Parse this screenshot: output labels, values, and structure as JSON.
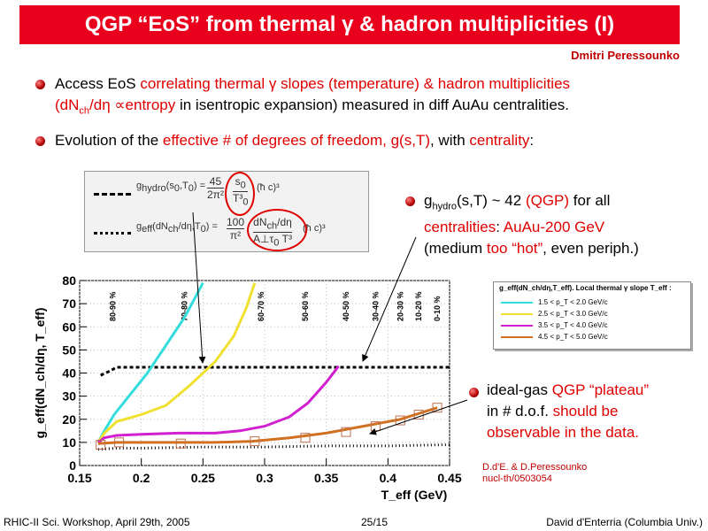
{
  "title": "QGP “EoS” from thermal γ & hadron multiplicities (I)",
  "author": "Dmitri Peressounko",
  "bullet1": {
    "line1_a": "Access EoS ",
    "line1_b": "correlating thermal γ slopes (temperature) & hadron multiplicities",
    "line2_a": "(dN",
    "line2_sub": "ch",
    "line2_b": "/dη ∝entropy",
    "line2_c": " in isentropic expansion) measured in diff AuAu centralities."
  },
  "bullet2": {
    "a": "Evolution of the ",
    "b": "effective # of degrees of freedom, g(s,T)",
    "c": ", with ",
    "d": "centrality",
    "e": ":"
  },
  "formula": {
    "f1_left": "g",
    "f1_sub": "hydro",
    "f1_args": "(s",
    "f1_args2": ",T",
    "f1_args3": ") = ",
    "f1_num": "45",
    "f1_den": "2π²",
    "f1_s": "s",
    "f1_T": "T³",
    "f1_tail": "(ħ c)³",
    "f2_left": "g",
    "f2_sub": "eff",
    "f2_args": "(dN",
    "f2_args2": "/dη,T",
    "f2_args3": ") = ",
    "f2_num": "100",
    "f2_den": "π²",
    "f2_fnum": "dN",
    "f2_fden": "A⊥τ",
    "f2_fden2": " T³",
    "f2_tail": "(ħ c)³",
    "sub0": "0",
    "subch": "ch"
  },
  "annot_hydro": {
    "a": "g",
    "sub": "hydro",
    "b": "(s,T) ~ 42 ",
    "c": "(QGP)",
    "d": " for all",
    "e": "centralities",
    "f": ": ",
    "g": "AuAu-200 GeV",
    "h": "(medium ",
    "i": "too “hot”",
    "j": ", even periph.)"
  },
  "annot_gas": {
    "a": "ideal-gas ",
    "b": "QGP “plateau”",
    "c": "in # d.o.f. ",
    "d": "should be",
    "e": "observable in the data."
  },
  "legend": {
    "title": "g_eff(dN_ch/dη,T_eff). Local thermal γ slope T_eff :",
    "items": [
      {
        "label": "1.5 < p_T < 2.0 GeV/c",
        "color": "#33dddd"
      },
      {
        "label": "2.5 < p_T < 3.0 GeV/c",
        "color": "#f0e030"
      },
      {
        "label": "3.5 < p_T < 4.0 GeV/c",
        "color": "#d020d0"
      },
      {
        "label": "4.5 < p_T < 5.0 GeV/c",
        "color": "#d07020"
      }
    ]
  },
  "reference": {
    "line1": "D.d'E. & D.Peressounko",
    "line2": "nucl-th/0503054"
  },
  "footer": {
    "left": "RHIC-II Sci. Workshop, April 29th, 2005",
    "center": "25/15",
    "right": "David d'Enterria (Columbia Univ.)"
  },
  "chart_data": {
    "type": "line",
    "xlabel": "T_eff (GeV)",
    "ylabel": "g_eff(dN_ch/dη, T_eff)",
    "xlim": [
      0.15,
      0.45
    ],
    "ylim": [
      0,
      80
    ],
    "xticks": [
      "0.15",
      "0.2",
      "0.25",
      "0.3",
      "0.35",
      "0.4",
      "0.45"
    ],
    "yticks": [
      "0",
      "10",
      "20",
      "30",
      "40",
      "50",
      "60",
      "70",
      "80"
    ],
    "centralities": [
      {
        "label": "80-90 %",
        "x": 0.177
      },
      {
        "label": "70-80 %",
        "x": 0.235
      },
      {
        "label": "60-70 %",
        "x": 0.297
      },
      {
        "label": "50-60 %",
        "x": 0.333
      },
      {
        "label": "40-50 %",
        "x": 0.366
      },
      {
        "label": "30-40 %",
        "x": 0.39
      },
      {
        "label": "20-30 %",
        "x": 0.41
      },
      {
        "label": "10-20 %",
        "x": 0.425
      },
      {
        "label": "0-10 %",
        "x": 0.44
      }
    ],
    "series": [
      {
        "color": "#33dddd",
        "x": [
          0.165,
          0.17,
          0.178,
          0.19,
          0.205,
          0.22,
          0.235,
          0.245,
          0.25
        ],
        "y": [
          10,
          15,
          22,
          30,
          40,
          52,
          64,
          74,
          79
        ]
      },
      {
        "color": "#f0e030",
        "x": [
          0.165,
          0.17,
          0.18,
          0.2,
          0.22,
          0.24,
          0.26,
          0.275,
          0.285,
          0.292
        ],
        "y": [
          10,
          14,
          19,
          22,
          26,
          35,
          45,
          56,
          68,
          79
        ]
      },
      {
        "color": "#d020d0",
        "x": [
          0.165,
          0.17,
          0.18,
          0.2,
          0.23,
          0.26,
          0.28,
          0.3,
          0.32,
          0.335,
          0.35,
          0.36
        ],
        "y": [
          10,
          12,
          13,
          13.5,
          14,
          14,
          15,
          17,
          21,
          27,
          36,
          43
        ]
      },
      {
        "color": "#d07020",
        "x": [
          0.165,
          0.18,
          0.2,
          0.23,
          0.26,
          0.29,
          0.32,
          0.35,
          0.38,
          0.41,
          0.44
        ],
        "y": [
          9.5,
          10,
          10,
          10,
          10,
          10.5,
          12,
          14,
          17,
          20,
          25
        ]
      }
    ],
    "markers": {
      "x": [
        0.167,
        0.182,
        0.232,
        0.292,
        0.333,
        0.366,
        0.39,
        0.41,
        0.425,
        0.44
      ],
      "y": [
        9,
        10,
        9.5,
        10.5,
        12,
        14.5,
        17,
        19.5,
        22,
        25
      ]
    },
    "dashed_upper": {
      "x": [
        0.167,
        0.175,
        0.18,
        0.2,
        0.25,
        0.3,
        0.35,
        0.4,
        0.45
      ],
      "y": [
        39,
        41,
        42.5,
        42.5,
        42.5,
        42.5,
        42.5,
        42.5,
        42.5
      ]
    },
    "dashed_lower": {
      "x": [
        0.165,
        0.18,
        0.2,
        0.25,
        0.3,
        0.35,
        0.4,
        0.45
      ],
      "y": [
        7,
        7.5,
        7.5,
        8,
        8,
        8.5,
        8.5,
        9
      ]
    }
  }
}
